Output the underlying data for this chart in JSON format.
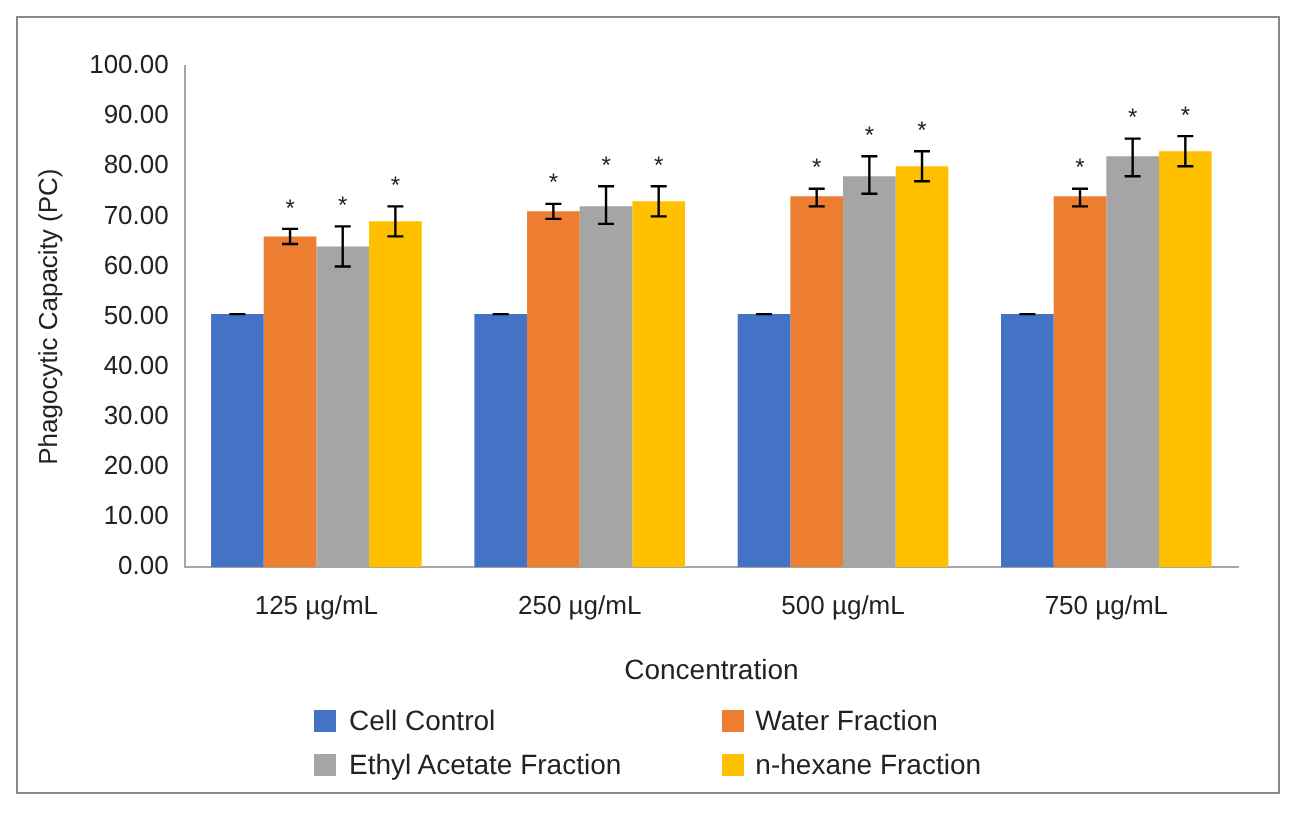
{
  "chart_data": {
    "type": "bar",
    "xlabel": "Concentration",
    "ylabel": "Phagocytic Capacity (PC)",
    "categories": [
      "125 µg/mL",
      "250 µg/mL",
      "500 µg/mL",
      "750 µg/mL"
    ],
    "series": [
      {
        "name": "Cell Control",
        "color": "#4472c4",
        "values": [
          50.5,
          50.5,
          50.5,
          50.5
        ],
        "errors": [
          0,
          0,
          0,
          0
        ]
      },
      {
        "name": "Water Fraction",
        "color": "#ed7d31",
        "values": [
          66,
          71,
          74,
          74
        ],
        "errors": [
          [
            64.5,
            67.5
          ],
          [
            69.5,
            72.5
          ],
          [
            72,
            75.5
          ],
          [
            72,
            75.5
          ]
        ],
        "value_labels": [
          "*",
          "*",
          "*",
          "*"
        ]
      },
      {
        "name": "Ethyl Acetate Fraction",
        "color": "#a5a5a5",
        "values": [
          64,
          72,
          78,
          82
        ],
        "errors": [
          [
            60,
            68
          ],
          [
            68.5,
            76
          ],
          [
            74.5,
            82
          ],
          [
            78,
            85.5
          ]
        ],
        "value_labels": [
          "*",
          "*",
          "*",
          "*"
        ]
      },
      {
        "name": "n-hexane Fraction",
        "color": "#ffc000",
        "values": [
          69,
          73,
          80,
          83
        ],
        "errors": [
          [
            66,
            72
          ],
          [
            70,
            76
          ],
          [
            77,
            83
          ],
          [
            80,
            86
          ]
        ],
        "value_labels": [
          "*",
          "*",
          "*",
          "*"
        ]
      }
    ],
    "ylim": [
      0,
      100
    ],
    "yticks": [
      {
        "value": 0,
        "label": "0.00"
      },
      {
        "value": 10,
        "label": "10.00"
      },
      {
        "value": 20,
        "label": "20.00"
      },
      {
        "value": 30,
        "label": "30.00"
      },
      {
        "value": 40,
        "label": "40.00"
      },
      {
        "value": 50,
        "label": "50.00"
      },
      {
        "value": 60,
        "label": "60.00"
      },
      {
        "value": 70,
        "label": "70.00"
      },
      {
        "value": 80,
        "label": "80.00"
      },
      {
        "value": 90,
        "label": "90.00"
      },
      {
        "value": 100,
        "label": "100.00"
      }
    ],
    "grid": false,
    "legend": "bottom"
  }
}
